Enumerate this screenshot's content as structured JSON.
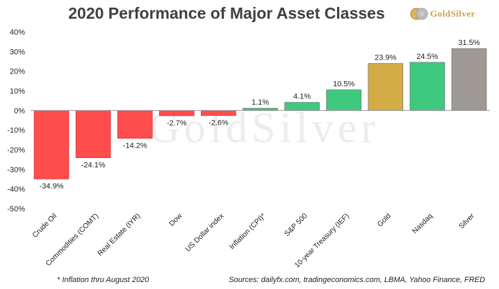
{
  "title": "2020 Performance of Major Asset Classes",
  "logo": {
    "text": "GoldSilver",
    "icon": "coin-stack-icon"
  },
  "watermark": "GoldSilver",
  "footnote": "* Inflation thru August 2020",
  "sources": "Sources: dailyfx.com, tradingeconomics.com, LBMA, Yahoo Finance, FRED",
  "colors": {
    "negative": "#ff4d4d",
    "positive": "#3ec97f",
    "gold": "#d4ac45",
    "silver": "#a09a96"
  },
  "chart_data": {
    "type": "bar",
    "title": "2020 Performance of Major Asset Classes",
    "xlabel": "",
    "ylabel": "",
    "ylim": [
      -50,
      40
    ],
    "yticks": [
      40,
      30,
      20,
      10,
      0,
      -10,
      -20,
      -30,
      -40,
      -50
    ],
    "ytick_labels": [
      "40%",
      "30%",
      "20%",
      "10%",
      "0%",
      "-10%",
      "-20%",
      "-30%",
      "-40%",
      "-50%"
    ],
    "grid": false,
    "categories": [
      "Crude Oil",
      "Commodities (COMT)",
      "Real Estate (IYR)",
      "Dow",
      "US Dollar index",
      "Inflation (CPI)*",
      "S&P 500",
      "10-year Treasury (IEF)",
      "Gold",
      "Nasdaq",
      "Silver"
    ],
    "values": [
      -34.9,
      -24.1,
      -14.2,
      -2.7,
      -2.6,
      1.1,
      4.1,
      10.5,
      23.9,
      24.5,
      31.5
    ],
    "value_labels": [
      "-34.9%",
      "-24.1%",
      "-14.2%",
      "-2.7%",
      "-2.6%",
      "1.1%",
      "4.1%",
      "10.5%",
      "23.9%",
      "24.5%",
      "31.5%"
    ],
    "bar_colors": [
      "#ff4d4d",
      "#ff4d4d",
      "#ff4d4d",
      "#ff4d4d",
      "#ff4d4d",
      "#3ec97f",
      "#3ec97f",
      "#3ec97f",
      "#d4ac45",
      "#3ec97f",
      "#a09a96"
    ]
  }
}
